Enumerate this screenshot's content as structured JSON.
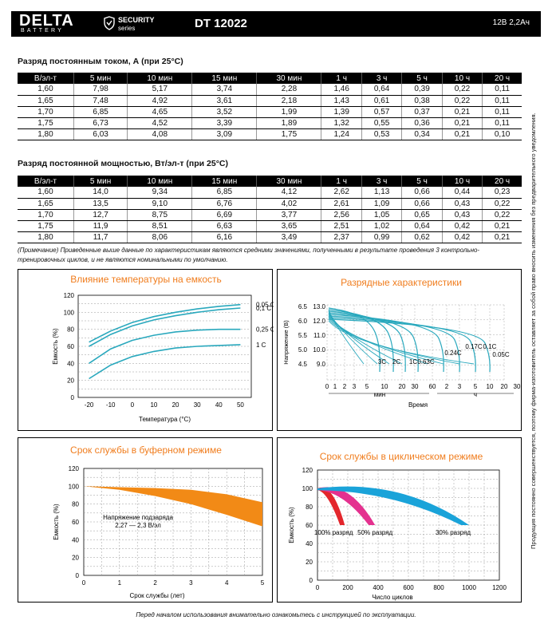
{
  "header": {
    "brand": "DELTA",
    "brand_sub": "BATTERY",
    "series_line1": "SECURITY",
    "series_line2": "series",
    "model": "DT 12022",
    "spec": "12В   2,2Ач"
  },
  "table_current": {
    "title": "Разряд постоянным током, А (при 25°C)",
    "columns": [
      "В/эл-т",
      "5 мин",
      "10 мин",
      "15 мин",
      "30 мин",
      "1 ч",
      "3 ч",
      "5 ч",
      "10 ч",
      "20 ч"
    ],
    "rows": [
      [
        "1,60",
        "7,98",
        "5,17",
        "3,74",
        "2,28",
        "1,46",
        "0,64",
        "0,39",
        "0,22",
        "0,11"
      ],
      [
        "1,65",
        "7,48",
        "4,92",
        "3,61",
        "2,18",
        "1,43",
        "0,61",
        "0,38",
        "0,22",
        "0,11"
      ],
      [
        "1,70",
        "6,85",
        "4,65",
        "3,52",
        "1,99",
        "1,39",
        "0,57",
        "0,37",
        "0,21",
        "0,11"
      ],
      [
        "1,75",
        "6,73",
        "4,52",
        "3,39",
        "1,89",
        "1,32",
        "0,55",
        "0,36",
        "0,21",
        "0,11"
      ],
      [
        "1,80",
        "6,03",
        "4,08",
        "3,09",
        "1,75",
        "1,24",
        "0,53",
        "0,34",
        "0,21",
        "0,10"
      ]
    ]
  },
  "table_power": {
    "title": "Разряд постоянной мощностью, Вт/эл-т (при 25°C)",
    "columns": [
      "В/эл-т",
      "5 мин",
      "10 мин",
      "15 мин",
      "30 мин",
      "1 ч",
      "3 ч",
      "5 ч",
      "10 ч",
      "20 ч"
    ],
    "rows": [
      [
        "1,60",
        "14,0",
        "9,34",
        "6,85",
        "4,12",
        "2,62",
        "1,13",
        "0,66",
        "0,44",
        "0,23"
      ],
      [
        "1,65",
        "13,5",
        "9,10",
        "6,76",
        "4,02",
        "2,61",
        "1,09",
        "0,66",
        "0,43",
        "0,22"
      ],
      [
        "1,70",
        "12,7",
        "8,75",
        "6,69",
        "3,77",
        "2,56",
        "1,05",
        "0,65",
        "0,43",
        "0,22"
      ],
      [
        "1,75",
        "11,9",
        "8,51",
        "6,63",
        "3,65",
        "2,51",
        "1,02",
        "0,64",
        "0,42",
        "0,21"
      ],
      [
        "1,80",
        "11,7",
        "8,06",
        "6,16",
        "3,49",
        "2,37",
        "0,99",
        "0,62",
        "0,42",
        "0,21"
      ]
    ]
  },
  "note": "(Примечание) Приведенные выше данные по характеристикам являются средними значениями, полученными в результате проведения 3 контрольно-тренировочных циклов, и не являются номинальными по умолчанию.",
  "side_text": "Продукция постоянно совершенствуется, поэтому фирма-изготовитель оставляет за собой право вносить изменения без предварительного уведомления.",
  "footer": "Перед началом использования внимательно ознакомьтесь с инструкцией по эксплуатации.",
  "colors": {
    "accent": "#f07d1e",
    "teal": "#29a8bd",
    "red": "#e3262c",
    "magenta": "#e4318f",
    "blue": "#1aa3d9",
    "orange_fill": "#f28a16"
  },
  "chart_data": [
    {
      "type": "line",
      "title": "Влияние температуры на емкость",
      "xlabel": "Температура (°C)",
      "ylabel": "Емкость (%)",
      "xlim": [
        -25,
        55
      ],
      "ylim": [
        0,
        120
      ],
      "xticks": [
        "-20",
        "-10",
        "0",
        "10",
        "20",
        "30",
        "40",
        "50"
      ],
      "yticks": [
        "0",
        "20",
        "40",
        "60",
        "80",
        "100",
        "120"
      ],
      "series": [
        {
          "name": "0,05 С",
          "x": [
            -20,
            -10,
            0,
            10,
            20,
            30,
            40,
            50
          ],
          "y": [
            65,
            78,
            88,
            95,
            100,
            104,
            107,
            109
          ]
        },
        {
          "name": "0,1 С",
          "x": [
            -20,
            -10,
            0,
            10,
            20,
            30,
            40,
            50
          ],
          "y": [
            60,
            74,
            84,
            91,
            96,
            100,
            103,
            105
          ]
        },
        {
          "name": "0,25 С",
          "x": [
            -20,
            -10,
            0,
            10,
            20,
            30,
            40,
            50
          ],
          "y": [
            40,
            57,
            67,
            73,
            77,
            79,
            80,
            80
          ]
        },
        {
          "name": "1 С",
          "x": [
            -20,
            -10,
            0,
            10,
            20,
            30,
            40,
            50
          ],
          "y": [
            22,
            38,
            48,
            54,
            58,
            60,
            61,
            62
          ]
        }
      ]
    },
    {
      "type": "line",
      "title": "Разрядные характеристики",
      "xlabel": "Время",
      "ylabel": "Напряжение (В)",
      "ylim": [
        8.0,
        13.5
      ],
      "yticks": [
        "6.5",
        "6.0",
        "5.5",
        "5.0",
        "4.5"
      ],
      "yticks_inner": [
        "13.0",
        "12.0",
        "11.0",
        "10.0",
        "9.0"
      ],
      "xticks_min": [
        "0",
        "1",
        "2",
        "3",
        "5",
        "10",
        "20",
        "30",
        "60"
      ],
      "xticks_h": [
        "2",
        "3",
        "5",
        "10",
        "20",
        "30"
      ],
      "unit_min": "мин",
      "unit_h": "ч",
      "series_labels": [
        "3C",
        "2C",
        "1C",
        "0.63C",
        "0.24C",
        "0.17C",
        "0.1C",
        "0.05C"
      ]
    },
    {
      "type": "area",
      "title": "Срок службы в буферном режиме",
      "xlabel": "Срок службы (лет)",
      "ylabel": "Емкость (%)",
      "xlim": [
        0,
        5
      ],
      "ylim": [
        0,
        120
      ],
      "xticks": [
        "0",
        "1",
        "2",
        "3",
        "4",
        "5"
      ],
      "yticks": [
        "0",
        "20",
        "40",
        "60",
        "80",
        "100",
        "120"
      ],
      "upper": {
        "x": [
          0,
          1,
          2,
          3,
          4,
          5
        ],
        "y": [
          100,
          99,
          98,
          96,
          91,
          82
        ]
      },
      "lower": {
        "x": [
          0,
          1,
          2,
          3,
          4,
          5
        ],
        "y": [
          100,
          96,
          89,
          80,
          68,
          55
        ]
      },
      "annotation_line1": "Напряжение подзаряда",
      "annotation_line2": "2,27 — 2,3 В/эл"
    },
    {
      "type": "area",
      "title": "Срок службы в циклическом режиме",
      "xlabel": "Число циклов",
      "ylabel": "Емкость (%)",
      "xlim": [
        0,
        1200
      ],
      "ylim": [
        0,
        120
      ],
      "xticks": [
        "0",
        "200",
        "400",
        "600",
        "800",
        "1000",
        "1200"
      ],
      "yticks": [
        "0",
        "20",
        "40",
        "60",
        "80",
        "100",
        "120"
      ],
      "series": [
        {
          "name": "100% разряд",
          "end_cycles": 180
        },
        {
          "name": "50% разряд",
          "end_cycles": 380
        },
        {
          "name": "30% разряд",
          "end_cycles": 1000
        }
      ]
    }
  ]
}
